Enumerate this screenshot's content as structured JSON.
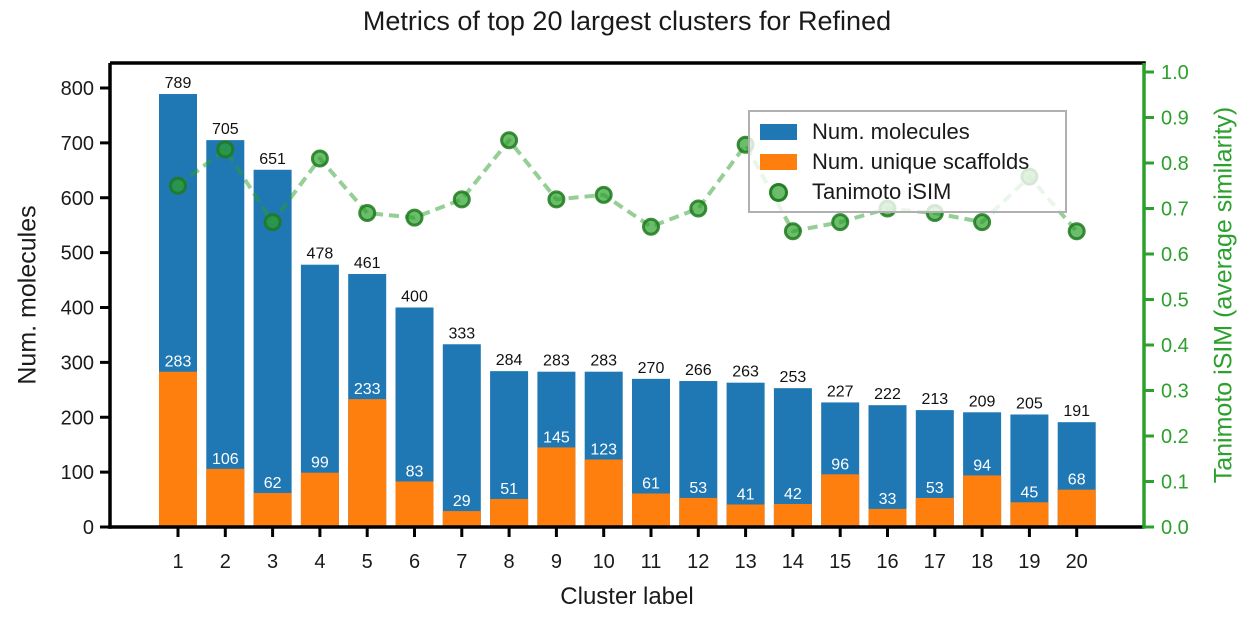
{
  "title": "Metrics of top 20 largest clusters for Refined",
  "chart_data": {
    "type": "bar",
    "subtype": "overlaid bars + dashed line on secondary axis",
    "title": "Metrics of top 20 largest clusters for Refined",
    "xlabel": "Cluster label",
    "ylabel_left": "Num. molecules",
    "ylabel_right": "Tanimoto iSIM (average similarity)",
    "categories": [
      "1",
      "2",
      "3",
      "4",
      "5",
      "6",
      "7",
      "8",
      "9",
      "10",
      "11",
      "12",
      "13",
      "14",
      "15",
      "16",
      "17",
      "18",
      "19",
      "20"
    ],
    "series": [
      {
        "name": "Num. molecules",
        "type": "bar",
        "axis": "left",
        "color": "#1f77b4",
        "label_color": "#111111",
        "values": [
          789,
          705,
          651,
          478,
          461,
          400,
          333,
          284,
          283,
          283,
          270,
          266,
          263,
          253,
          227,
          222,
          213,
          209,
          205,
          191
        ]
      },
      {
        "name": "Num. unique scaffolds",
        "type": "bar",
        "axis": "left",
        "color": "#ff7f0e",
        "label_color": "#ffffff",
        "values": [
          283,
          106,
          62,
          99,
          233,
          83,
          29,
          51,
          145,
          123,
          61,
          53,
          41,
          42,
          96,
          33,
          53,
          94,
          45,
          68
        ]
      },
      {
        "name": "Tanimoto iSIM",
        "type": "line",
        "axis": "right",
        "color": "#2ca02c",
        "line_style": "dashed",
        "line_alpha": 0.5,
        "marker": "circle",
        "values": [
          0.75,
          0.83,
          0.67,
          0.81,
          0.69,
          0.68,
          0.72,
          0.85,
          0.72,
          0.73,
          0.66,
          0.7,
          0.84,
          0.65,
          0.67,
          0.7,
          0.69,
          0.67,
          0.77,
          0.65
        ]
      }
    ],
    "left_axis": {
      "min": 0,
      "max": 800,
      "ticks": [
        "0",
        "100",
        "200",
        "300",
        "400",
        "500",
        "600",
        "700",
        "800"
      ],
      "color": "#000000"
    },
    "right_axis": {
      "min": 0.0,
      "max": 1.0,
      "ticks": [
        "0.0",
        "0.1",
        "0.2",
        "0.3",
        "0.4",
        "0.5",
        "0.6",
        "0.7",
        "0.8",
        "0.9",
        "1.0"
      ],
      "color": "#2ca02c"
    },
    "legend": {
      "position": "upper right",
      "entries": [
        "Num. molecules",
        "Num. unique scaffolds",
        "Tanimoto iSIM"
      ]
    },
    "grid": false,
    "background": "#ffffff"
  }
}
